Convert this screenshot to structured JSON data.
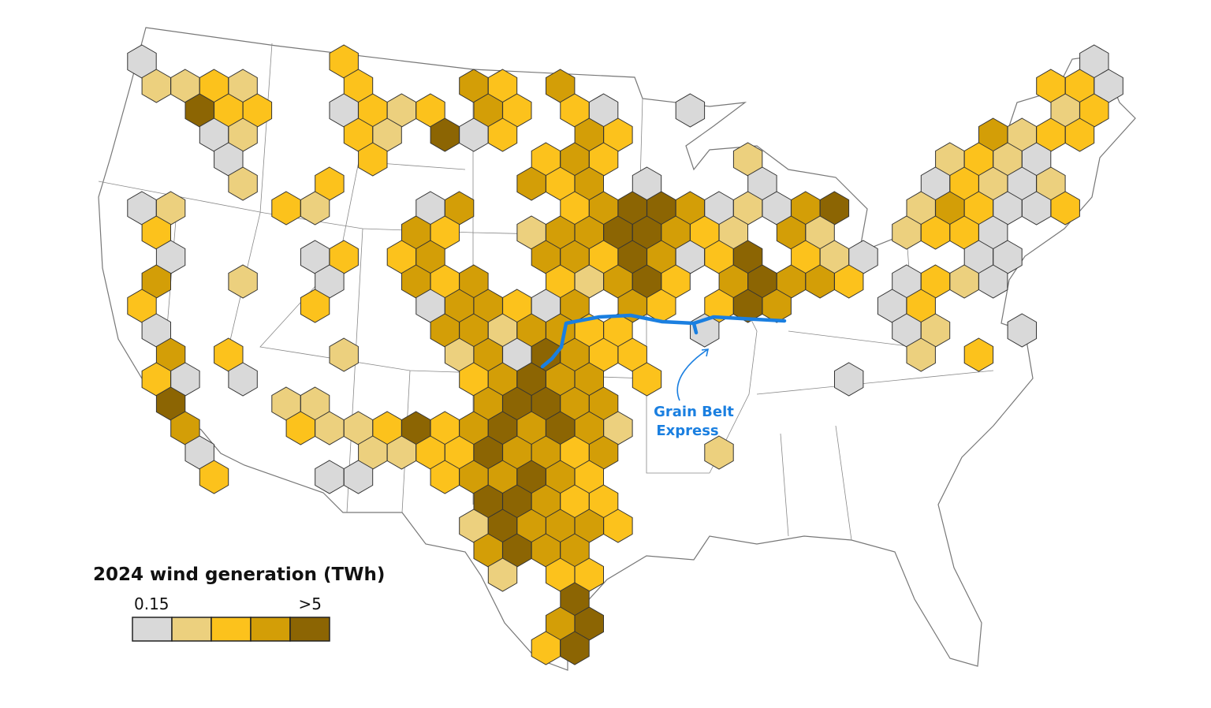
{
  "legend": {
    "title": "2024 wind generation (TWh)",
    "min_label": "0.15",
    "max_label": ">5",
    "colors": [
      "#d9d9d9",
      "#ecd07e",
      "#fcc21c",
      "#d39e07",
      "#8c6503"
    ]
  },
  "annotation": {
    "lines": [
      "Grain Belt",
      "Express"
    ],
    "color": "#1a7fe0"
  }
}
